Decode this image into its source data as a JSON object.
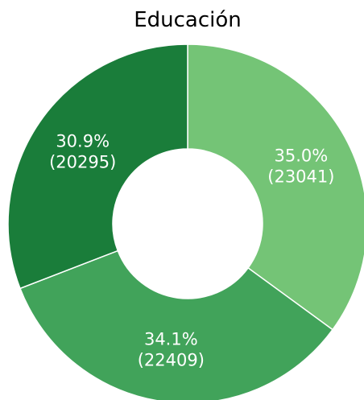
{
  "chart_data": {
    "type": "donut",
    "title": "Educación",
    "categories": [
      null,
      null,
      null
    ],
    "values": [
      23041,
      22409,
      20295
    ],
    "value_labels": [
      [
        "35.0%",
        "(23041)"
      ],
      [
        "34.1%",
        "(22409)"
      ],
      [
        "30.9%",
        "(20295)"
      ]
    ],
    "colors": [
      "#74c476",
      "#41a35a",
      "#1a7d3a"
    ]
  }
}
